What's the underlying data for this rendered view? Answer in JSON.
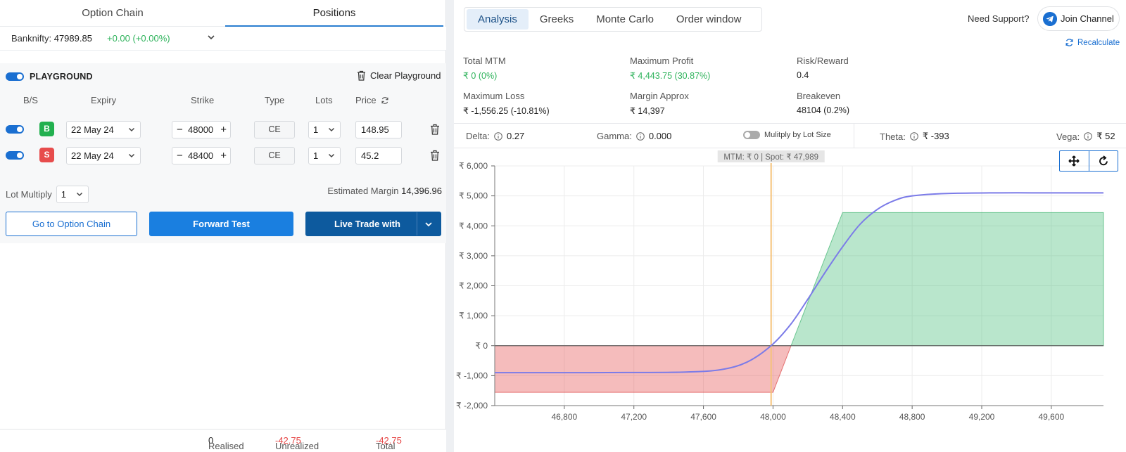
{
  "left": {
    "tabs": [
      "Option Chain",
      "Positions"
    ],
    "active_tab": "Positions",
    "underlying": {
      "label": "Banknifty:",
      "value": "47989.85",
      "change": "+0.00 (+0.00%)"
    },
    "playground": {
      "title": "PLAYGROUND",
      "clear_label": "Clear Playground",
      "columns": [
        "B/S",
        "Expiry",
        "Strike",
        "Type",
        "Lots",
        "Price"
      ],
      "legs": [
        {
          "side": "B",
          "expiry": "22 May 24",
          "strike": "48000",
          "type": "CE",
          "lots": "1",
          "price": "148.95"
        },
        {
          "side": "S",
          "expiry": "22 May 24",
          "strike": "48400",
          "type": "CE",
          "lots": "1",
          "price": "45.2"
        }
      ],
      "lot_multiply_label": "Lot Multiply",
      "lot_multiply_value": "1",
      "estimated_margin_label": "Estimated Margin",
      "estimated_margin_value": "14,396.96"
    },
    "buttons": {
      "option_chain": "Go to Option Chain",
      "forward_test": "Forward Test",
      "live_trade": "Live Trade with"
    },
    "footer": {
      "realised_label": "Realised",
      "realised_value": "0",
      "unrealized_label": "Unrealized",
      "unrealized_value": "-42.75",
      "total_label": "Total",
      "total_value": "-42.75"
    }
  },
  "right": {
    "tabs": [
      "Analysis",
      "Greeks",
      "Monte Carlo",
      "Order window"
    ],
    "active_tab": "Analysis",
    "need_support": "Need Support?",
    "join_channel": "Join Channel",
    "recalculate": "Recalculate",
    "stats": {
      "total_mtm": {
        "label": "Total MTM",
        "value": "₹ 0 (0%)"
      },
      "max_profit": {
        "label": "Maximum Profit",
        "value": "₹ 4,443.75 (30.87%)"
      },
      "risk_reward": {
        "label": "Risk/Reward",
        "value": "0.4"
      },
      "max_loss": {
        "label": "Maximum Loss",
        "value": "₹ -1,556.25 (-10.81%)"
      },
      "margin": {
        "label": "Margin Approx",
        "value": "₹ 14,397"
      },
      "breakeven": {
        "label": "Breakeven",
        "value": "48104 (0.2%)"
      }
    },
    "greeks": {
      "delta": {
        "label": "Delta:",
        "value": "0.27"
      },
      "gamma": {
        "label": "Gamma:",
        "value": "0.000"
      },
      "lot_size_toggle": "Mulitply by Lot Size",
      "theta": {
        "label": "Theta:",
        "value": "₹ -393"
      },
      "vega": {
        "label": "Vega:",
        "value": "₹ 52"
      }
    }
  },
  "colors": {
    "accent": "#1a6fd1",
    "profit": "#2eb35b",
    "loss": "#e64545",
    "curve": "#7b7be8",
    "spot_line": "#f5c27a"
  },
  "chart_data": {
    "type": "area",
    "tooltip": "MTM: ₹ 0  |  Spot: ₹ 47,989",
    "spot": 47989,
    "x_ticks": [
      46800,
      47200,
      47600,
      48000,
      48400,
      48800,
      49200,
      49600
    ],
    "x_tick_labels": [
      "46,800",
      "47,200",
      "47,600",
      "48,000",
      "48,400",
      "48,800",
      "49,200",
      "49,600"
    ],
    "xlim": [
      46400,
      49900
    ],
    "y_ticks": [
      -2000,
      -1000,
      0,
      1000,
      2000,
      3000,
      4000,
      5000,
      6000
    ],
    "y_tick_labels": [
      "₹ -2,000",
      "₹ -1,000",
      "₹ 0",
      "₹ 1,000",
      "₹ 2,000",
      "₹ 3,000",
      "₹ 4,000",
      "₹ 5,000",
      "₹ 6,000"
    ],
    "ylim": [
      -2000,
      6000
    ],
    "expiry_payoff": {
      "x": [
        46400,
        48000,
        48400,
        49900
      ],
      "y": [
        -1556.25,
        -1556.25,
        4443.75,
        4443.75
      ]
    },
    "current_curve": {
      "x": [
        46400,
        46800,
        47200,
        47500,
        47700,
        47850,
        47989,
        48100,
        48200,
        48300,
        48400,
        48500,
        48600,
        48700,
        48800,
        49000,
        49300,
        49600,
        49900
      ],
      "y": [
        -900,
        -900,
        -895,
        -880,
        -800,
        -550,
        0,
        700,
        1550,
        2450,
        3300,
        4050,
        4550,
        4850,
        5000,
        5080,
        5100,
        5100,
        5100
      ]
    },
    "grid": true
  }
}
